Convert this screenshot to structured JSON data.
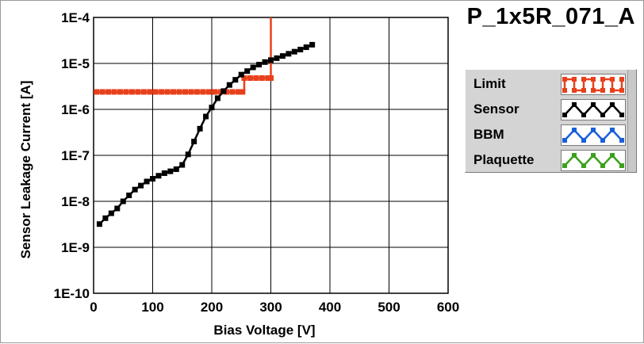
{
  "chart_data": {
    "type": "line",
    "title": "P_1x5R_071_A",
    "xlabel": "Bias Voltage [V]",
    "ylabel": "Sensor Leakage Current [A]",
    "xlim": [
      0,
      600
    ],
    "ylim": [
      1e-10,
      0.0001
    ],
    "yscale": "log",
    "grid": true,
    "legend_position": "right",
    "x_ticks": [
      "0",
      "100",
      "200",
      "300",
      "400",
      "500",
      "600"
    ],
    "y_ticks": [
      "1E-4",
      "1E-5",
      "1E-6",
      "1E-7",
      "1E-8",
      "1E-9",
      "1E-10"
    ],
    "series": [
      {
        "name": "Limit",
        "color": "#e8401c",
        "marker": "square",
        "step": true,
        "x": [
          5,
          15,
          25,
          35,
          45,
          55,
          65,
          75,
          85,
          95,
          105,
          115,
          125,
          135,
          145,
          155,
          165,
          175,
          185,
          195,
          205,
          215,
          225,
          235,
          245,
          252,
          255,
          265,
          275,
          285,
          295,
          300,
          300
        ],
        "y": [
          2.4e-06,
          2.4e-06,
          2.4e-06,
          2.4e-06,
          2.4e-06,
          2.4e-06,
          2.4e-06,
          2.4e-06,
          2.4e-06,
          2.4e-06,
          2.4e-06,
          2.4e-06,
          2.4e-06,
          2.4e-06,
          2.4e-06,
          2.4e-06,
          2.4e-06,
          2.4e-06,
          2.4e-06,
          2.4e-06,
          2.4e-06,
          2.4e-06,
          2.4e-06,
          2.4e-06,
          2.4e-06,
          2.4e-06,
          4.8e-06,
          4.8e-06,
          4.8e-06,
          4.8e-06,
          4.8e-06,
          4.8e-06,
          0.0001
        ]
      },
      {
        "name": "Sensor",
        "color": "#000000",
        "marker": "square",
        "x": [
          10,
          20,
          30,
          40,
          50,
          60,
          70,
          80,
          90,
          100,
          110,
          120,
          130,
          140,
          150,
          160,
          170,
          180,
          190,
          200,
          210,
          220,
          230,
          240,
          250,
          260,
          270,
          280,
          290,
          300,
          310,
          320,
          330,
          340,
          350,
          360,
          370
        ],
        "y": [
          3.2e-09,
          4.3e-09,
          5.5e-09,
          7e-09,
          1e-08,
          1.35e-08,
          1.8e-08,
          2.2e-08,
          2.7e-08,
          3.1e-08,
          3.6e-08,
          4.1e-08,
          4.5e-08,
          5e-08,
          6.2e-08,
          1.05e-07,
          2e-07,
          3.8e-07,
          7e-07,
          1.1e-06,
          1.75e-06,
          2.5e-06,
          3.4e-06,
          4.4e-06,
          5.7e-06,
          6.8e-06,
          8.2e-06,
          9.4e-06,
          1.07e-05,
          1.18e-05,
          1.3e-05,
          1.45e-05,
          1.62e-05,
          1.8e-05,
          2e-05,
          2.25e-05,
          2.55e-05
        ]
      }
    ],
    "legend": [
      {
        "name": "Limit",
        "color": "#e8401c",
        "wave": "square"
      },
      {
        "name": "Sensor",
        "color": "#000000",
        "wave": "triangle"
      },
      {
        "name": "BBM",
        "color": "#1a5fd8",
        "wave": "triangle"
      },
      {
        "name": "Plaquette",
        "color": "#3da11d",
        "wave": "triangle"
      }
    ]
  }
}
